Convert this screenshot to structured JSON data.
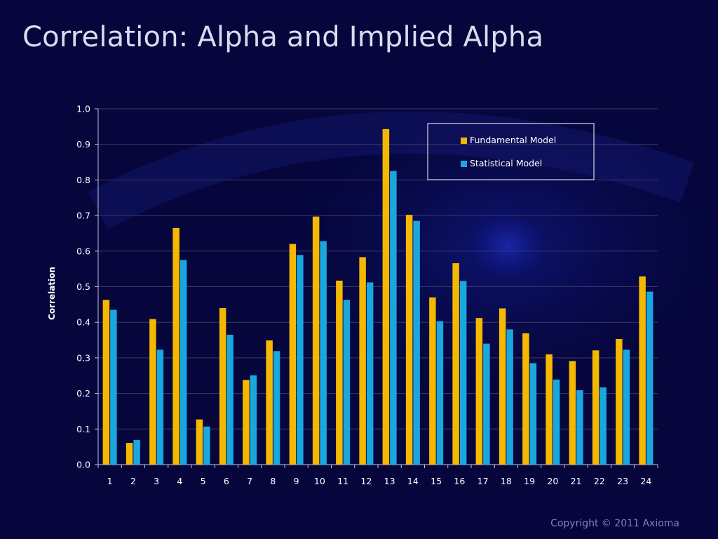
{
  "slide": {
    "title": "Correlation: Alpha and Implied Alpha",
    "copyright": "Copyright © 2011 Axioma"
  },
  "colors": {
    "background": "#06063d",
    "fundamental": "#f5b800",
    "statistical": "#1aa7e0",
    "text": "#ffffff",
    "gridline": "#3a3a6a"
  },
  "chart_data": {
    "type": "bar",
    "title": "",
    "xlabel": "",
    "ylabel": "Correlation",
    "ylim": [
      0,
      1.0
    ],
    "yticks": [
      "0.0",
      "0.1",
      "0.2",
      "0.3",
      "0.4",
      "0.5",
      "0.6",
      "0.7",
      "0.8",
      "0.9",
      "1.0"
    ],
    "grid": true,
    "legend_position": "top-right",
    "categories": [
      "1",
      "2",
      "3",
      "4",
      "5",
      "6",
      "7",
      "8",
      "9",
      "10",
      "11",
      "12",
      "13",
      "14",
      "15",
      "16",
      "17",
      "18",
      "19",
      "20",
      "21",
      "22",
      "23",
      "24"
    ],
    "series": [
      {
        "name": "Fundamental Model",
        "values": [
          0.463,
          0.061,
          0.409,
          0.665,
          0.127,
          0.44,
          0.238,
          0.349,
          0.62,
          0.697,
          0.517,
          0.583,
          0.943,
          0.702,
          0.47,
          0.566,
          0.412,
          0.439,
          0.369,
          0.31,
          0.291,
          0.321,
          0.353,
          0.529
        ]
      },
      {
        "name": "Statistical Model",
        "values": [
          0.435,
          0.069,
          0.323,
          0.575,
          0.107,
          0.365,
          0.251,
          0.319,
          0.589,
          0.628,
          0.463,
          0.512,
          0.825,
          0.685,
          0.403,
          0.516,
          0.34,
          0.38,
          0.285,
          0.239,
          0.209,
          0.217,
          0.323,
          0.486
        ]
      }
    ]
  }
}
